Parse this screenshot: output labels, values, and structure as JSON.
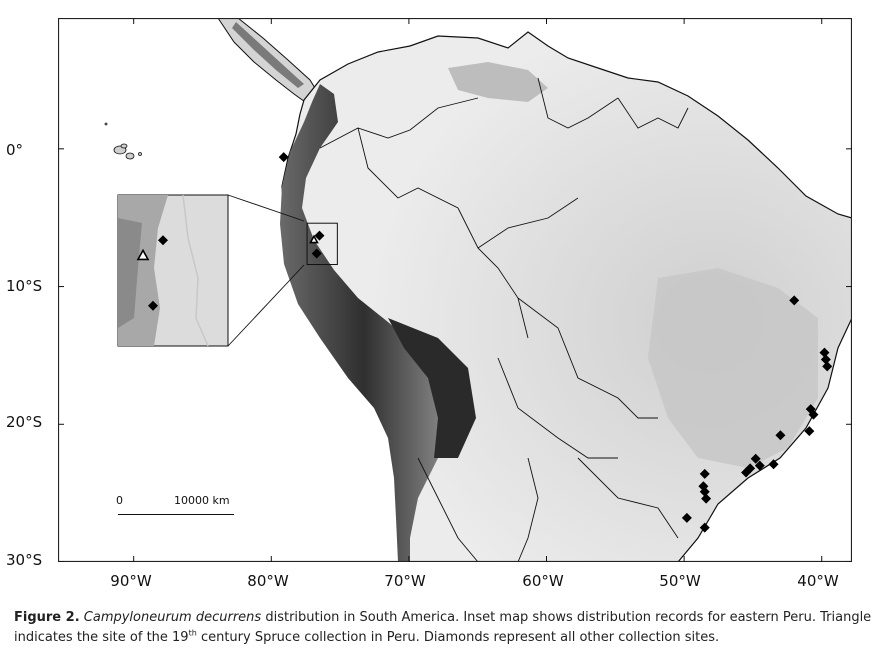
{
  "map": {
    "y_ticks": [
      {
        "label": "0°",
        "lat": 0
      },
      {
        "label": "10°S",
        "lat": -10
      },
      {
        "label": "20°S",
        "lat": -20
      },
      {
        "label": "30°S",
        "lat": -30
      }
    ],
    "x_ticks": [
      {
        "label": "90°W",
        "lon": -90
      },
      {
        "label": "80°W",
        "lon": -80
      },
      {
        "label": "70°W",
        "lon": -70
      },
      {
        "label": "60°W",
        "lon": -60
      },
      {
        "label": "50°W",
        "lon": -50
      },
      {
        "label": "40°W",
        "lon": -40
      }
    ],
    "extent": {
      "lon_min": -95.5,
      "lon_max": -37.8,
      "lat_max": 9.5,
      "lat_min": -30
    },
    "scale": {
      "start": "0",
      "end": "10000 km"
    },
    "diamond_records": [
      {
        "lon": -79.1,
        "lat": -0.6
      },
      {
        "lon": -76.5,
        "lat": -6.3
      },
      {
        "lon": -76.7,
        "lat": -7.6
      },
      {
        "lon": -42.0,
        "lat": -11.0
      },
      {
        "lon": -39.8,
        "lat": -14.8
      },
      {
        "lon": -39.7,
        "lat": -15.3
      },
      {
        "lon": -39.6,
        "lat": -15.8
      },
      {
        "lon": -40.8,
        "lat": -18.9
      },
      {
        "lon": -40.6,
        "lat": -19.3
      },
      {
        "lon": -40.9,
        "lat": -20.5
      },
      {
        "lon": -43.0,
        "lat": -20.8
      },
      {
        "lon": -44.8,
        "lat": -22.5
      },
      {
        "lon": -44.5,
        "lat": -23.0
      },
      {
        "lon": -45.2,
        "lat": -23.2
      },
      {
        "lon": -45.5,
        "lat": -23.5
      },
      {
        "lon": -43.5,
        "lat": -22.9
      },
      {
        "lon": -48.5,
        "lat": -23.6
      },
      {
        "lon": -48.6,
        "lat": -24.5
      },
      {
        "lon": -48.5,
        "lat": -24.9
      },
      {
        "lon": -48.4,
        "lat": -25.4
      },
      {
        "lon": -49.8,
        "lat": -26.8
      },
      {
        "lon": -48.5,
        "lat": -27.5
      }
    ],
    "triangle_records": [
      {
        "lon": -76.9,
        "lat": -6.6
      }
    ],
    "inset": {
      "extent": {
        "lon_min": -77.4,
        "lon_max": -75.2,
        "lat_max": -5.4,
        "lat_min": -8.4
      },
      "diamonds": [
        {
          "lon": -76.5,
          "lat": -6.3
        },
        {
          "lon": -76.7,
          "lat": -7.6
        }
      ],
      "triangles": [
        {
          "lon": -76.9,
          "lat": -6.6
        }
      ]
    },
    "colors": {
      "frame": "#222222",
      "ocean": "#ffffff",
      "lowland": "#e6e6e6",
      "highland": "#9a9a9a",
      "andes": "#3c3c3c",
      "marker": "#000000"
    }
  },
  "caption": {
    "figure_label": "Figure 2.",
    "species": "Campyloneurum decurrens",
    "part1": " distribution in South America.  Inset map shows distribution records for eastern Peru. Triangle indicates the site of the 19",
    "sup": "th",
    "part2": " century Spruce collection in Peru. Diamonds represent all other collection sites."
  }
}
